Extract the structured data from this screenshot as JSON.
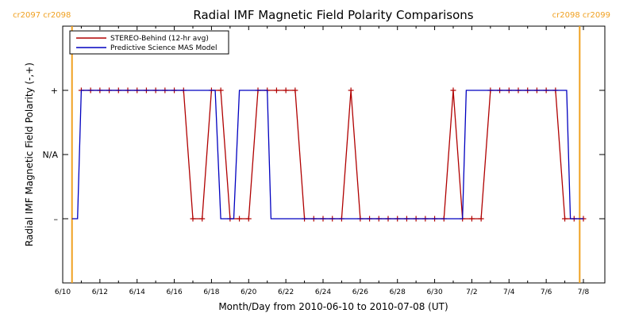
{
  "chart_data": {
    "type": "line",
    "title": "Radial IMF Magnetic Field Polarity Comparisons",
    "xlabel": "Month/Day from 2010-06-10 to 2010-07-08 (UT)",
    "ylabel": "Radial IMF Magnetic Field Polarity (-,+)",
    "x_tick_labels": [
      "6/10",
      "6/12",
      "6/14",
      "6/16",
      "6/18",
      "6/20",
      "6/22",
      "6/24",
      "6/26",
      "6/28",
      "6/30",
      "7/2",
      "7/4",
      "7/6",
      "7/8"
    ],
    "x_range_days": [
      0,
      28
    ],
    "y_tick_labels": [
      "+",
      "N/A",
      "–"
    ],
    "ylim": [
      -2,
      2
    ],
    "carrington_markers": [
      {
        "day": 0.5,
        "label": "cr2097 cr2098"
      },
      {
        "day": 27.8,
        "label": "cr2098 cr2099"
      }
    ],
    "legend": {
      "placement": "top-left",
      "entries": [
        {
          "name": "STEREO-Behind (12-hr avg)",
          "color": "#b00000"
        },
        {
          "name": "Predictive Science MAS Model",
          "color": "#0000c0"
        }
      ]
    },
    "series": [
      {
        "name": "STEREO-Behind (12-hr avg)",
        "color": "#b00000",
        "marker": "+",
        "points": [
          [
            1.0,
            1
          ],
          [
            1.5,
            1
          ],
          [
            2.0,
            1
          ],
          [
            2.5,
            1
          ],
          [
            3.0,
            1
          ],
          [
            3.5,
            1
          ],
          [
            4.0,
            1
          ],
          [
            4.5,
            1
          ],
          [
            5.0,
            1
          ],
          [
            5.5,
            1
          ],
          [
            6.0,
            1
          ],
          [
            6.5,
            1
          ],
          [
            7.0,
            -1
          ],
          [
            7.5,
            -1
          ],
          [
            8.0,
            1
          ],
          [
            8.5,
            1
          ],
          [
            9.0,
            -1
          ],
          [
            9.5,
            -1
          ],
          [
            10.0,
            -1
          ],
          [
            10.5,
            1
          ],
          [
            11.0,
            1
          ],
          [
            11.5,
            1
          ],
          [
            12.0,
            1
          ],
          [
            12.5,
            1
          ],
          [
            13.0,
            -1
          ],
          [
            13.5,
            -1
          ],
          [
            14.0,
            -1
          ],
          [
            14.5,
            -1
          ],
          [
            15.0,
            -1
          ],
          [
            15.5,
            1
          ],
          [
            16.0,
            -1
          ],
          [
            16.5,
            -1
          ],
          [
            17.0,
            -1
          ],
          [
            17.5,
            -1
          ],
          [
            18.0,
            -1
          ],
          [
            18.5,
            -1
          ],
          [
            19.0,
            -1
          ],
          [
            19.5,
            -1
          ],
          [
            20.0,
            -1
          ],
          [
            20.5,
            -1
          ],
          [
            21.0,
            1
          ],
          [
            21.5,
            -1
          ],
          [
            22.0,
            -1
          ],
          [
            22.5,
            -1
          ],
          [
            23.0,
            1
          ],
          [
            23.5,
            1
          ],
          [
            24.0,
            1
          ],
          [
            24.5,
            1
          ],
          [
            25.0,
            1
          ],
          [
            25.5,
            1
          ],
          [
            26.0,
            1
          ],
          [
            26.5,
            1
          ],
          [
            27.0,
            -1
          ],
          [
            27.5,
            -1
          ],
          [
            28.0,
            -1
          ]
        ]
      },
      {
        "name": "Predictive Science MAS Model",
        "color": "#0000c0",
        "points": [
          [
            0.5,
            -1
          ],
          [
            0.8,
            -1
          ],
          [
            1.0,
            1
          ],
          [
            8.2,
            1
          ],
          [
            8.5,
            -1
          ],
          [
            9.2,
            -1
          ],
          [
            9.5,
            1
          ],
          [
            11.0,
            1
          ],
          [
            11.2,
            -1
          ],
          [
            21.5,
            -1
          ],
          [
            21.7,
            1
          ],
          [
            27.1,
            1
          ],
          [
            27.3,
            -1
          ],
          [
            28.0,
            -1
          ]
        ]
      }
    ]
  }
}
